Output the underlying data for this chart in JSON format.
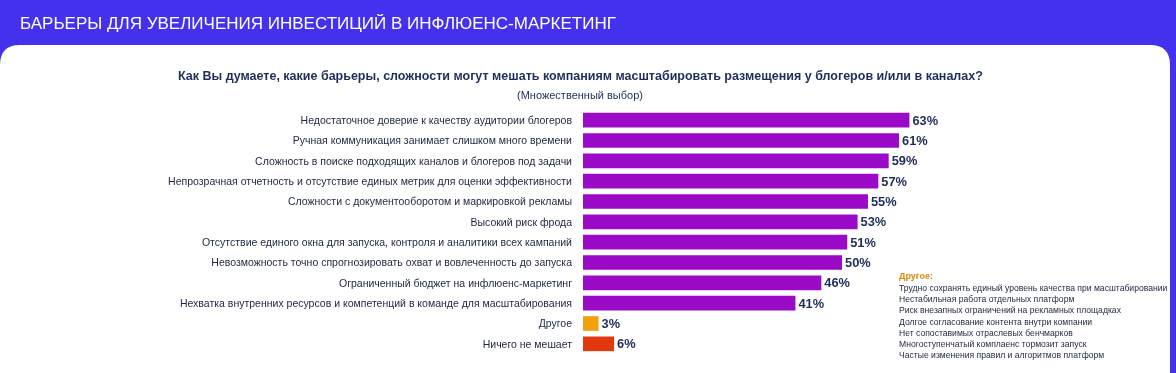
{
  "chart_data": {
    "type": "bar",
    "orientation": "horizontal",
    "title": "БАРЬЕРЫ ДЛЯ УВЕЛИЧЕНИЯ ИНВЕСТИЦИЙ В ИНФЛЮЕНС-МАРКЕТИНГ",
    "subtitle": "Как Вы думаете, какие барьеры, сложности могут мешать компаниям масштабировать размещения у блогеров и/или в каналах?",
    "categories": [
      "Недостаточное доверие к качеству аудитории блогеров",
      "Ручная коммуникация занимает слишком много времени",
      "Сложность в поиске подходящих каналов и блогеров под задачи",
      "Непрозрачная отчетность и отсутствие единых метрик для оценки эффективности",
      "Сложности с документооборотом и маркировкой рекламы",
      "Высокий риск фрода",
      "Отсутствие единого окна для запуска, контроля и аналитики всех кампаний",
      "Невозможность точно спрогнозировать охват и вовлеченность до запуска",
      "Ограниченный бюджет на инфлюенс-маркетинг",
      "Нехватка внутренних ресурсов и компетенций в команде для масштабирования",
      "Другое",
      "Ничего не мешает"
    ],
    "values": [
      63,
      61,
      59,
      57,
      55,
      53,
      51,
      50,
      46,
      41,
      3,
      6
    ],
    "value_labels": [
      "63%",
      "61%",
      "59%",
      "57%",
      "55%",
      "53%",
      "51%",
      "50%",
      "46%",
      "41%",
      "3%",
      "6%"
    ],
    "colors": [
      "#9b0ac6",
      "#9b0ac6",
      "#9b0ac6",
      "#9b0ac6",
      "#9b0ac6",
      "#9b0ac6",
      "#9b0ac6",
      "#9b0ac6",
      "#9b0ac6",
      "#9b0ac6",
      "#eea20c",
      "#e2380e"
    ],
    "annotations": [
      "(Множественный выбор)",
      "Другое:",
      "Трудно сохранять единый уровень качества при масштабировании",
      "Нестабильная работа отдельных платформ",
      "Риск внезапных ограничений на рекламных площадках",
      "Долгое согласование контента внутри компании",
      "Нет сопоставимых отраслевых бенчмарков",
      "Многоступенчатый комплаенс тормозит запуск",
      "Частые изменения правил и алгоритмов платформ"
    ],
    "legend": false
  }
}
